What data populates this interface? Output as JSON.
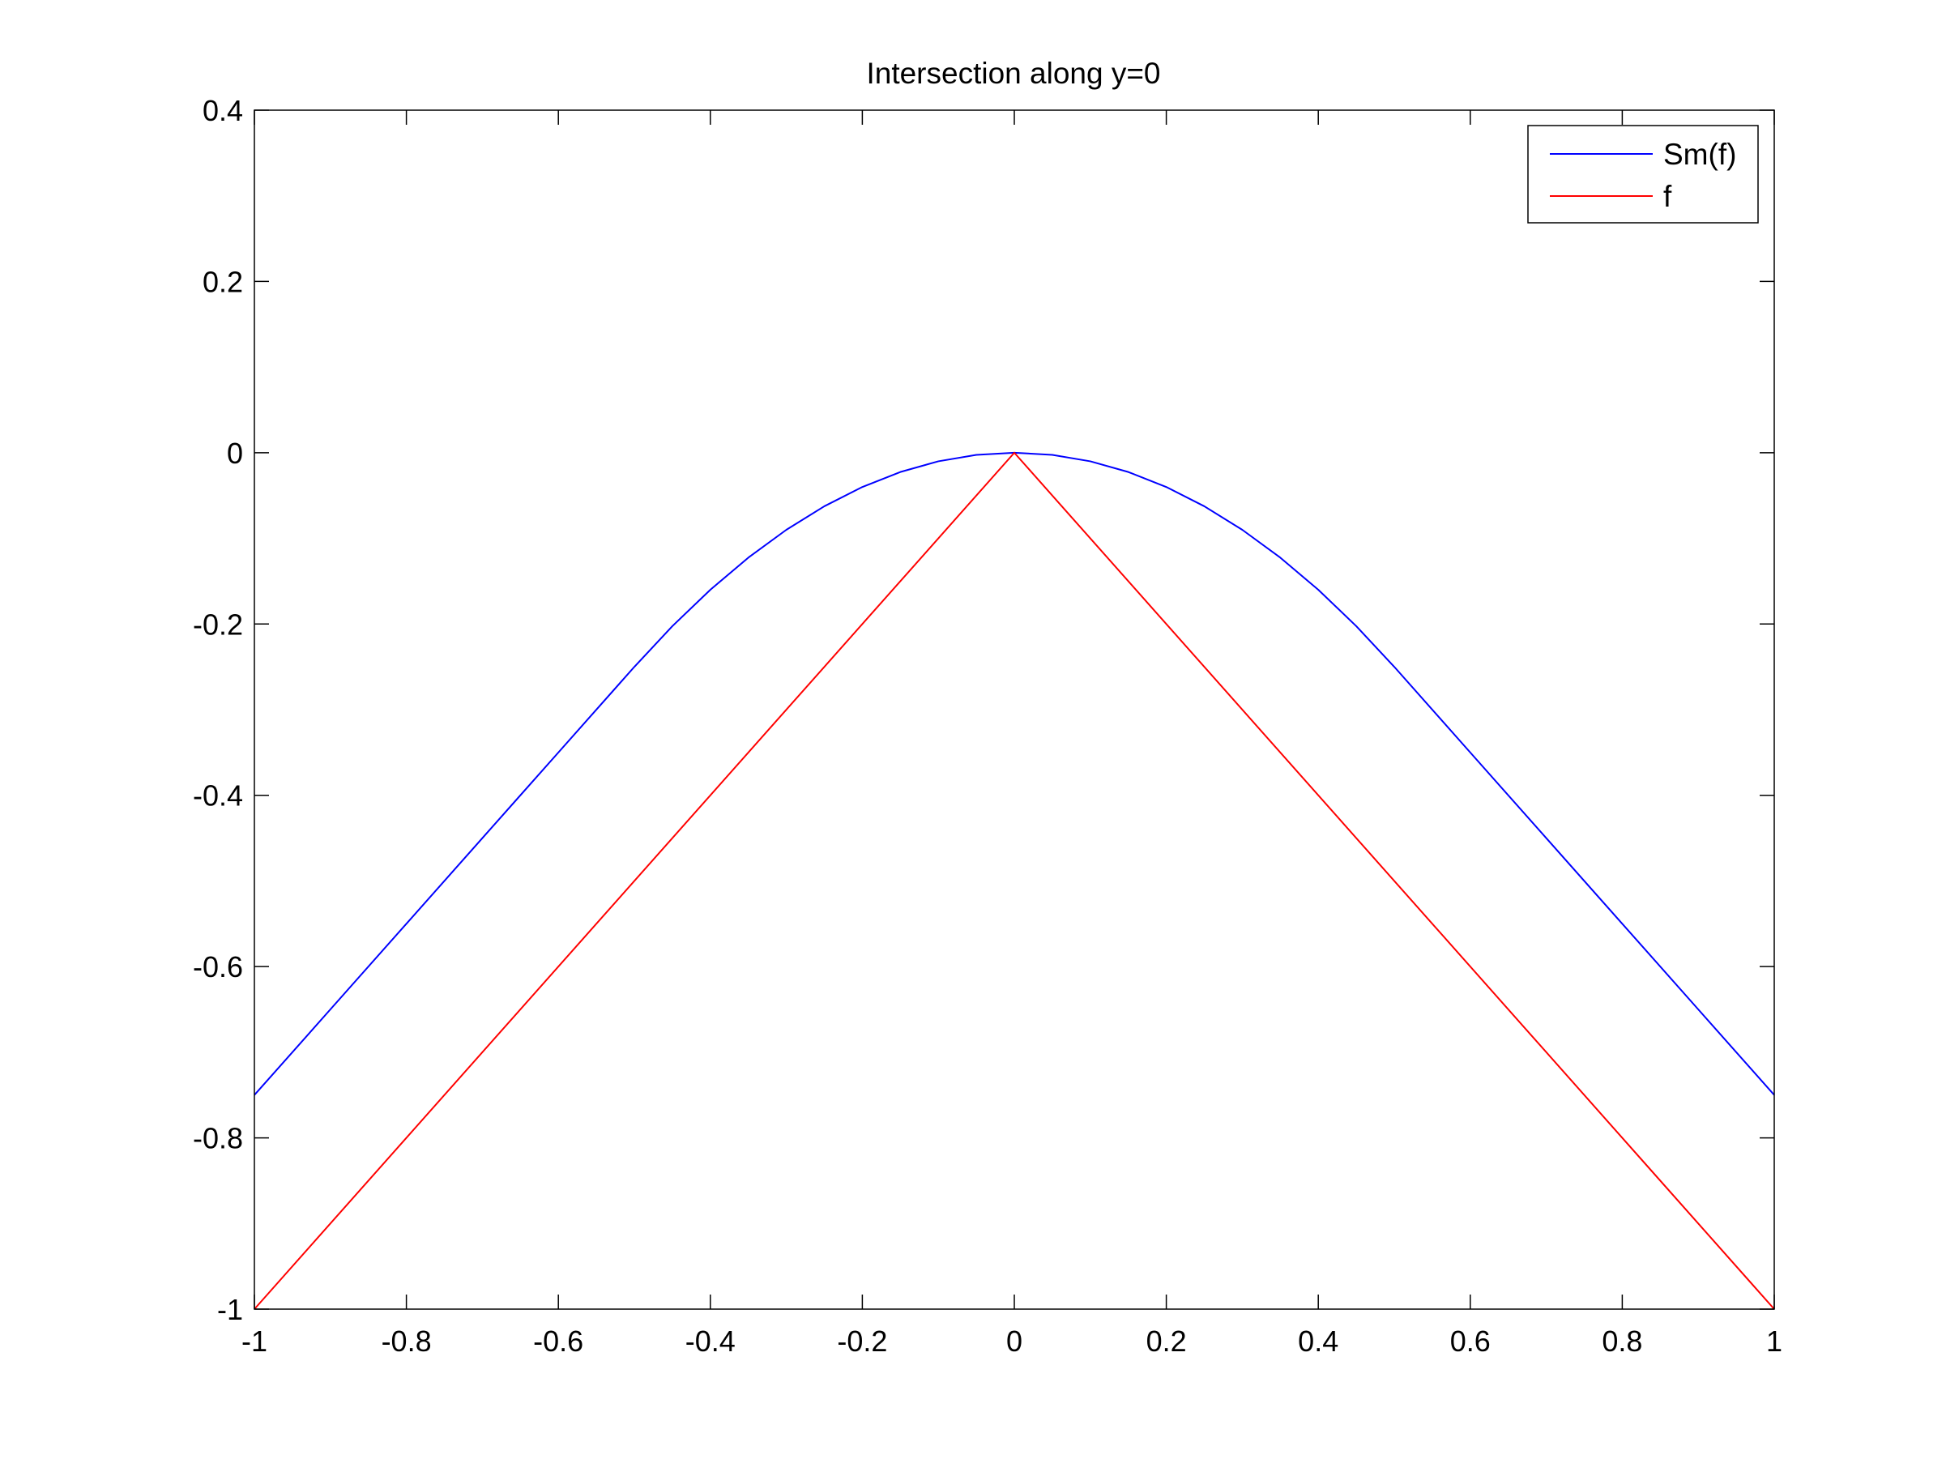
{
  "chart_data": {
    "type": "line",
    "title": "Intersection along y=0",
    "xlabel": "",
    "ylabel": "",
    "xlim": [
      -1,
      1
    ],
    "ylim": [
      -1,
      0.4
    ],
    "xticks": [
      -1,
      -0.8,
      -0.6,
      -0.4,
      -0.2,
      0,
      0.2,
      0.4,
      0.6,
      0.8,
      1
    ],
    "xtick_labels": [
      "-1",
      "-0.8",
      "-0.6",
      "-0.4",
      "-0.2",
      "0",
      "0.2",
      "0.4",
      "0.6",
      "0.8",
      "1"
    ],
    "yticks": [
      -1,
      -0.8,
      -0.6,
      -0.4,
      -0.2,
      0,
      0.2,
      0.4
    ],
    "ytick_labels": [
      "-1",
      "-0.8",
      "-0.6",
      "-0.4",
      "-0.2",
      "0",
      "0.2",
      "0.4"
    ],
    "grid": false,
    "legend_position": "top-right",
    "series": [
      {
        "name": "Sm(f)",
        "color": "#0000ff",
        "x": [
          -1,
          -0.9,
          -0.8,
          -0.7,
          -0.6,
          -0.5,
          -0.45,
          -0.4,
          -0.35,
          -0.3,
          -0.25,
          -0.2,
          -0.15,
          -0.1,
          -0.05,
          0,
          0.05,
          0.1,
          0.15,
          0.2,
          0.25,
          0.3,
          0.35,
          0.4,
          0.45,
          0.5,
          0.6,
          0.7,
          0.8,
          0.9,
          1
        ],
        "y": [
          -0.75,
          -0.65,
          -0.55,
          -0.45,
          -0.35,
          -0.25,
          -0.2025,
          -0.16,
          -0.1225,
          -0.09,
          -0.0625,
          -0.04,
          -0.0225,
          -0.01,
          -0.0025,
          0,
          -0.0025,
          -0.01,
          -0.0225,
          -0.04,
          -0.0625,
          -0.09,
          -0.1225,
          -0.16,
          -0.2025,
          -0.25,
          -0.35,
          -0.45,
          -0.55,
          -0.65,
          -0.75
        ]
      },
      {
        "name": "f",
        "color": "#ff0000",
        "x": [
          -1,
          0,
          1
        ],
        "y": [
          -1,
          0,
          -1
        ]
      }
    ]
  }
}
